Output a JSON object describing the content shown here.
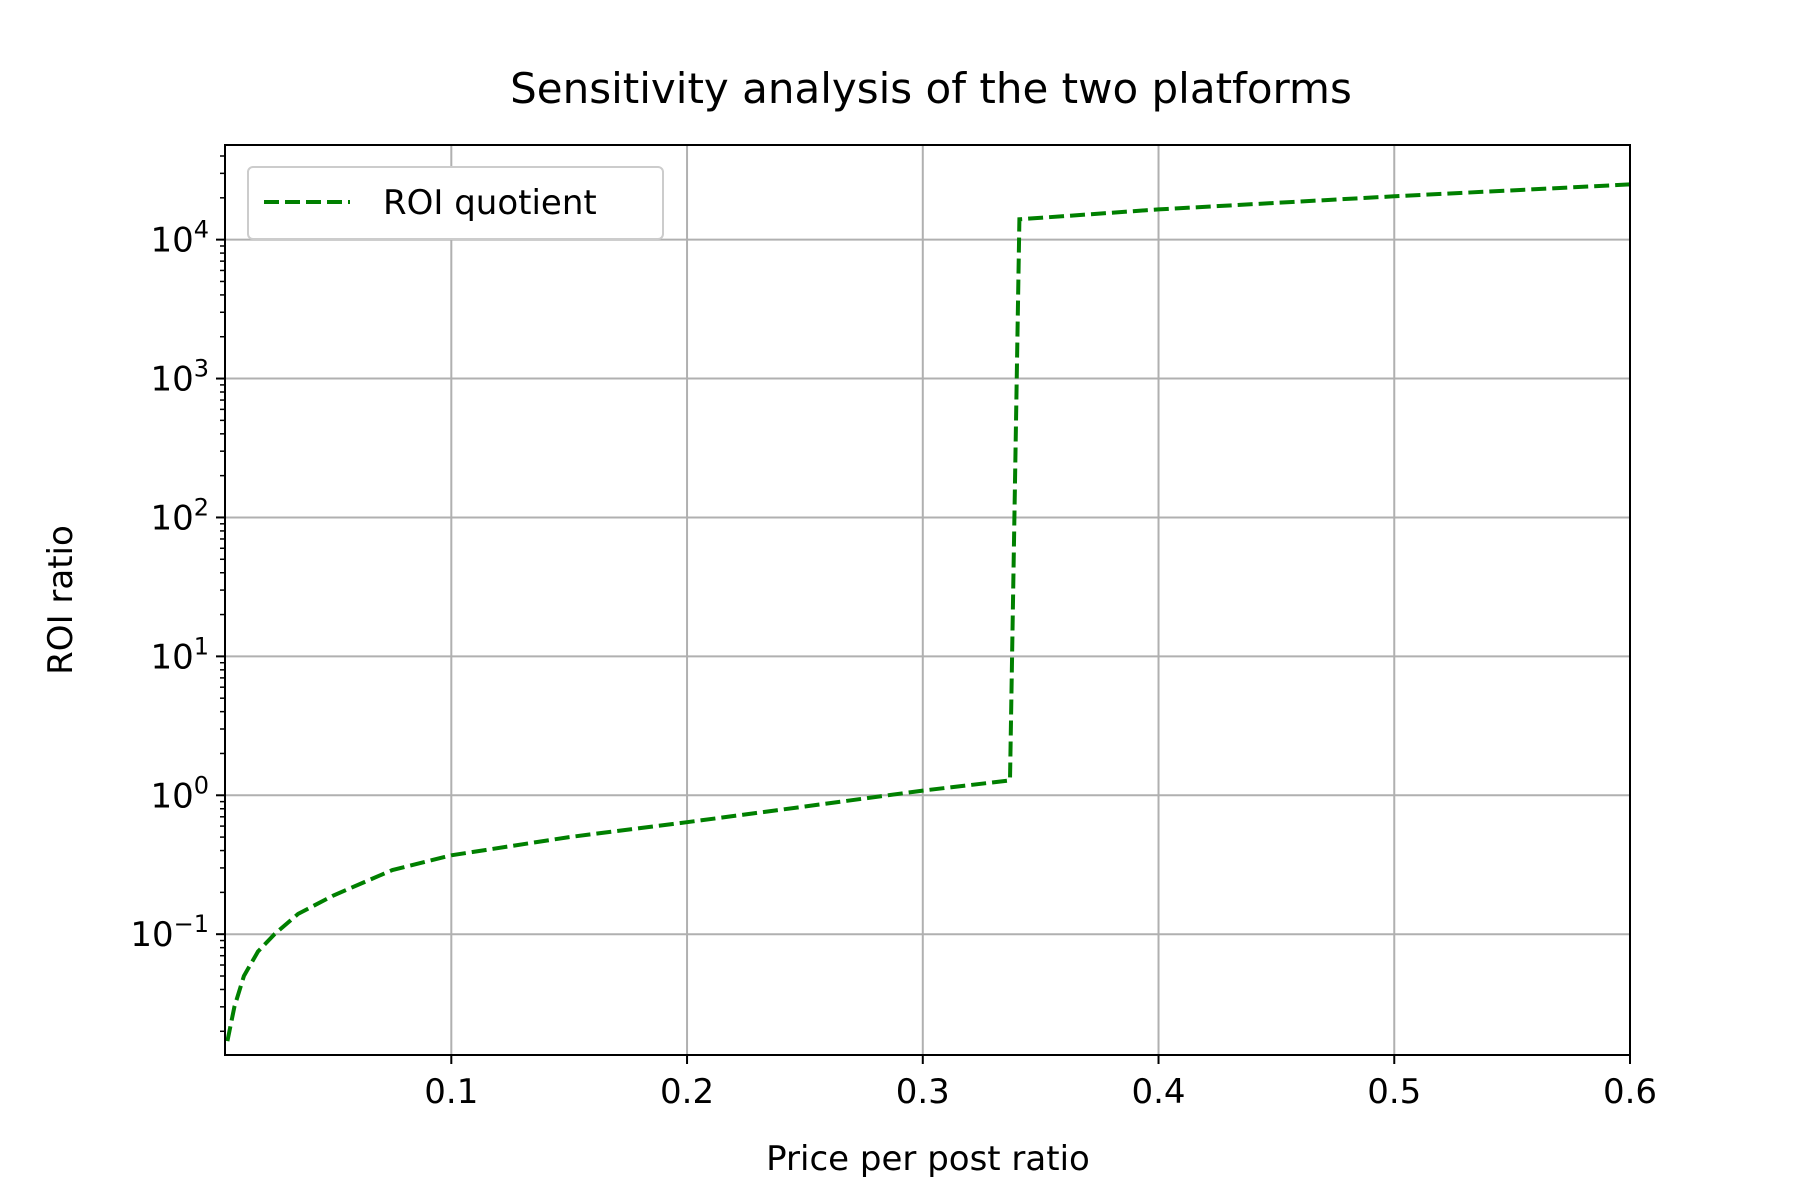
{
  "chart_data": {
    "type": "line",
    "title": "Sensitivity analysis of the two platforms",
    "xlabel": "Price per post ratio",
    "ylabel": "ROI ratio",
    "xlim": [
      0.004,
      0.6
    ],
    "ylim": [
      0.0135,
      48000
    ],
    "yscale": "log",
    "grid": true,
    "legend_position": "top-left",
    "x_ticks": [
      {
        "value": 0.1,
        "label": "0.1"
      },
      {
        "value": 0.2,
        "label": "0.2"
      },
      {
        "value": 0.3,
        "label": "0.3"
      },
      {
        "value": 0.4,
        "label": "0.4"
      },
      {
        "value": 0.5,
        "label": "0.5"
      },
      {
        "value": 0.6,
        "label": "0.6"
      }
    ],
    "y_ticks": [
      {
        "value": 0.1,
        "base": "10",
        "exp": "−1"
      },
      {
        "value": 1,
        "base": "10",
        "exp": "0"
      },
      {
        "value": 10,
        "base": "10",
        "exp": "1"
      },
      {
        "value": 100,
        "base": "10",
        "exp": "2"
      },
      {
        "value": 1000,
        "base": "10",
        "exp": "3"
      },
      {
        "value": 10000,
        "base": "10",
        "exp": "4"
      }
    ],
    "series": [
      {
        "name": "ROI quotient",
        "color": "#008000",
        "style": "dashed",
        "x": [
          0.005,
          0.008,
          0.012,
          0.018,
          0.025,
          0.035,
          0.05,
          0.075,
          0.1,
          0.125,
          0.15,
          0.2,
          0.25,
          0.3,
          0.337,
          0.341,
          0.4,
          0.5,
          0.6
        ],
        "y": [
          0.017,
          0.03,
          0.05,
          0.075,
          0.1,
          0.14,
          0.19,
          0.29,
          0.37,
          0.43,
          0.5,
          0.64,
          0.83,
          1.08,
          1.28,
          14000,
          16500,
          20500,
          25000
        ]
      }
    ]
  }
}
